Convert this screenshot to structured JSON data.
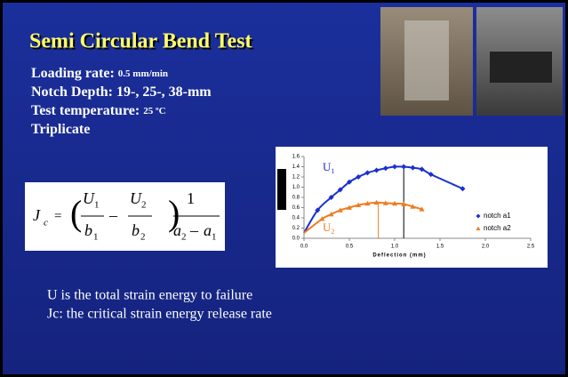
{
  "slide": {
    "title": "Semi Circular Bend Test",
    "items": [
      {
        "label": "Loading rate: ",
        "value": "0.5 mm/min"
      },
      {
        "label": "Notch Depth: 19-, 25-, 38-mm"
      },
      {
        "label": "Test temperature: ",
        "value": "25 ºC"
      },
      {
        "label": "Triplicate"
      }
    ],
    "formula": [
      "J",
      "c",
      "=",
      "U",
      "1",
      "b",
      "1",
      "–",
      "U",
      "2",
      "b",
      "2",
      "1",
      "a",
      "2",
      "–",
      "a",
      "1"
    ],
    "notes": [
      "U is the total strain energy to failure",
      "Jc: the critical strain energy release rate"
    ]
  },
  "chart_data": {
    "type": "scatter",
    "x_label": "Deflection (mm)",
    "xlim": [
      0,
      2.5
    ],
    "xticks": [
      {
        "value": 0,
        "label": "0.0"
      },
      {
        "value": 0.5,
        "label": "0.5"
      },
      {
        "value": 1,
        "label": "1.0"
      },
      {
        "value": 1.5,
        "label": "1.5"
      },
      {
        "value": 2,
        "label": "2.0"
      },
      {
        "value": 2.5,
        "label": "2.5"
      }
    ],
    "ylim": [
      0,
      1.6
    ],
    "yticks": [
      {
        "value": 0,
        "label": "0.0"
      },
      {
        "value": 0.2,
        "label": "0.2"
      },
      {
        "value": 0.4,
        "label": "0.4"
      },
      {
        "value": 0.6,
        "label": "0.6"
      },
      {
        "value": 0.8,
        "label": "0.8"
      },
      {
        "value": 1,
        "label": "1.0"
      },
      {
        "value": 1.2,
        "label": "1.2"
      },
      {
        "value": 1.4,
        "label": "1.4"
      },
      {
        "value": 1.6,
        "label": "1.6"
      }
    ],
    "series": [
      {
        "name": "notch a1",
        "color": "#1a2fd0",
        "marker": "diamond",
        "x": [
          0.15,
          0.3,
          0.4,
          0.5,
          0.6,
          0.7,
          0.8,
          0.9,
          1.0,
          1.1,
          1.2,
          1.3,
          1.4,
          1.75
        ],
        "values": [
          0.55,
          0.8,
          0.95,
          1.1,
          1.2,
          1.28,
          1.33,
          1.37,
          1.4,
          1.4,
          1.38,
          1.35,
          1.25,
          0.97
        ]
      },
      {
        "name": "notch a2",
        "color": "#ee7d20",
        "marker": "triangle",
        "x": [
          0.2,
          0.3,
          0.4,
          0.5,
          0.6,
          0.7,
          0.8,
          0.9,
          1.0,
          1.1,
          1.2,
          1.3
        ],
        "values": [
          0.38,
          0.47,
          0.55,
          0.6,
          0.65,
          0.68,
          0.7,
          0.69,
          0.68,
          0.67,
          0.62,
          0.57
        ]
      }
    ],
    "curve_labels": [
      {
        "text": "U",
        "sub": "1"
      },
      {
        "text": "U",
        "sub": "2"
      }
    ],
    "vlines": [
      {
        "x": 1.1,
        "y": 1.4,
        "color": "#000000"
      },
      {
        "x": 0.82,
        "y": 0.7,
        "color": "#ee7d20"
      }
    ],
    "legend": "lower right"
  }
}
